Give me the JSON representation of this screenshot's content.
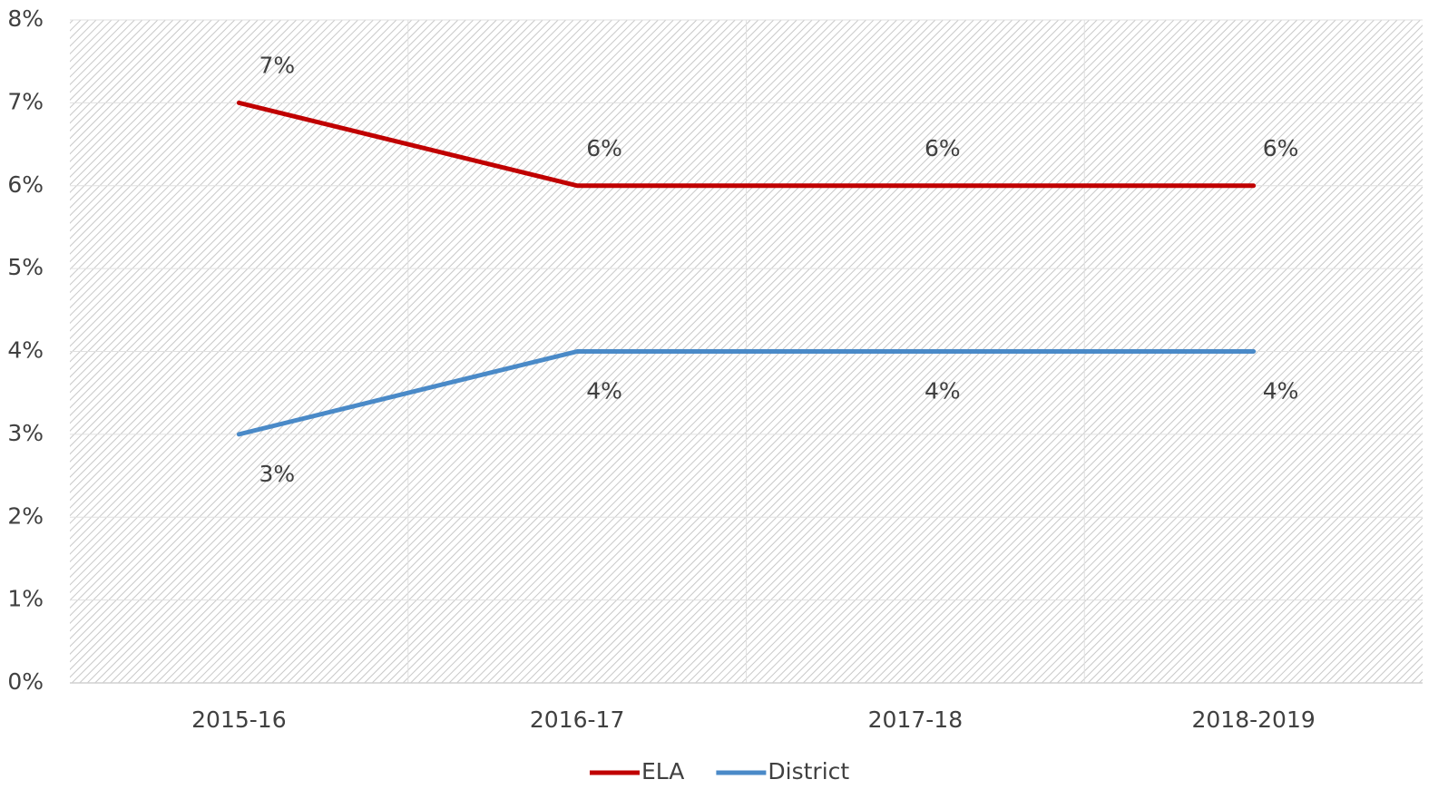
{
  "chart_data": {
    "type": "line",
    "categories": [
      "2015-16",
      "2016-17",
      "2017-18",
      "2018-2019"
    ],
    "series": [
      {
        "name": "ELA",
        "color": "#c00000",
        "values": [
          7,
          6,
          6,
          6
        ],
        "value_labels": [
          "7%",
          "6%",
          "6%",
          "6%"
        ]
      },
      {
        "name": "District",
        "color": "#4a8ac8",
        "values": [
          3,
          4,
          4,
          4
        ],
        "value_labels": [
          "3%",
          "4%",
          "4%",
          "4%"
        ]
      }
    ],
    "ylim": [
      0,
      8
    ],
    "yticks": [
      {
        "value": 0,
        "label": "0%"
      },
      {
        "value": 1,
        "label": "1%"
      },
      {
        "value": 2,
        "label": "2%"
      },
      {
        "value": 3,
        "label": "3%"
      },
      {
        "value": 4,
        "label": "4%"
      },
      {
        "value": 5,
        "label": "5%"
      },
      {
        "value": 6,
        "label": "6%"
      },
      {
        "value": 7,
        "label": "7%"
      },
      {
        "value": 8,
        "label": "8%"
      }
    ],
    "grid": true,
    "legend": "bottom"
  }
}
